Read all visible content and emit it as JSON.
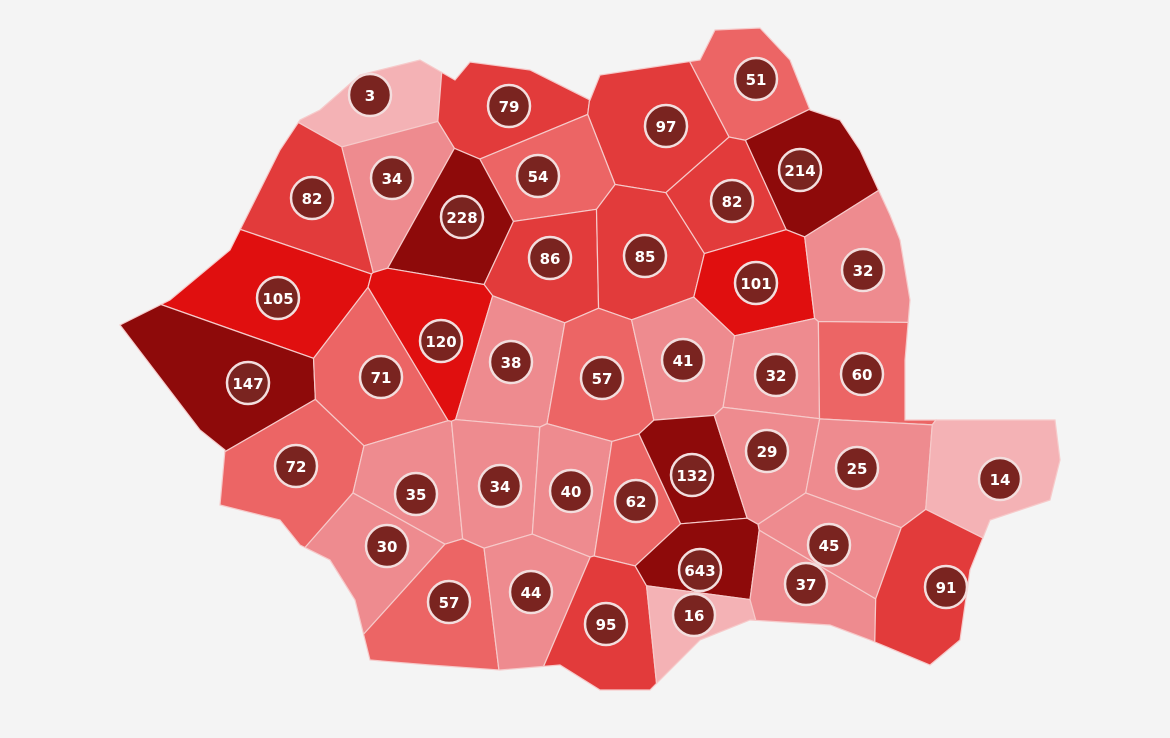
{
  "colors": {
    "background": "#f4f4f4",
    "tiers": {
      "dark": "#8e0a0a",
      "bright": "#e00f0f",
      "medium": "#e23b3b",
      "light": "#ec6565",
      "pink": "#ee8b8f",
      "pale": "#f4b2b5"
    },
    "badge_fill": "#7a2420",
    "badge_border": "#f3dede",
    "border": "#f6caca"
  },
  "counties": [
    {
      "value": "3",
      "tier": "pale"
    },
    {
      "value": "79",
      "tier": "medium"
    },
    {
      "value": "51",
      "tier": "light"
    },
    {
      "value": "97",
      "tier": "medium"
    },
    {
      "value": "34",
      "tier": "pink"
    },
    {
      "value": "54",
      "tier": "light"
    },
    {
      "value": "228",
      "tier": "dark"
    },
    {
      "value": "82",
      "tier": "medium"
    },
    {
      "value": "214",
      "tier": "dark"
    },
    {
      "value": "82",
      "tier": "medium"
    },
    {
      "value": "86",
      "tier": "medium"
    },
    {
      "value": "85",
      "tier": "medium"
    },
    {
      "value": "105",
      "tier": "bright"
    },
    {
      "value": "120",
      "tier": "bright"
    },
    {
      "value": "101",
      "tier": "bright"
    },
    {
      "value": "32",
      "tier": "pink"
    },
    {
      "value": "147",
      "tier": "dark"
    },
    {
      "value": "71",
      "tier": "light"
    },
    {
      "value": "38",
      "tier": "pink"
    },
    {
      "value": "57",
      "tier": "light"
    },
    {
      "value": "41",
      "tier": "pink"
    },
    {
      "value": "32",
      "tier": "pink"
    },
    {
      "value": "60",
      "tier": "light"
    },
    {
      "value": "72",
      "tier": "light"
    },
    {
      "value": "35",
      "tier": "pink"
    },
    {
      "value": "34",
      "tier": "pink"
    },
    {
      "value": "40",
      "tier": "pink"
    },
    {
      "value": "62",
      "tier": "light"
    },
    {
      "value": "132",
      "tier": "dark"
    },
    {
      "value": "29",
      "tier": "pink"
    },
    {
      "value": "25",
      "tier": "pink"
    },
    {
      "value": "14",
      "tier": "pale"
    },
    {
      "value": "30",
      "tier": "pink"
    },
    {
      "value": "57",
      "tier": "light"
    },
    {
      "value": "44",
      "tier": "pink"
    },
    {
      "value": "95",
      "tier": "medium"
    },
    {
      "value": "643",
      "tier": "dark"
    },
    {
      "value": "16",
      "tier": "pale"
    },
    {
      "value": "37",
      "tier": "pink"
    },
    {
      "value": "45",
      "tier": "pink"
    },
    {
      "value": "91",
      "tier": "medium"
    }
  ]
}
